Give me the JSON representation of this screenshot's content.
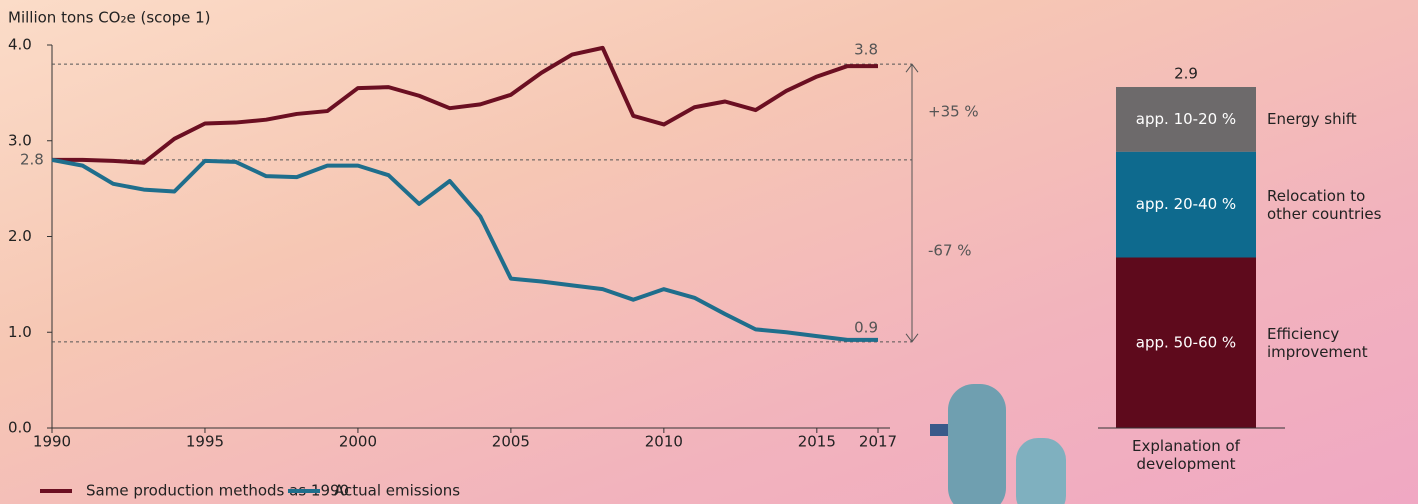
{
  "chart_data": [
    {
      "type": "line",
      "y_label": "Million tons CO₂e (scope 1)",
      "x": [
        1990,
        1991,
        1992,
        1993,
        1994,
        1995,
        1996,
        1997,
        1998,
        1999,
        2000,
        2001,
        2002,
        2003,
        2004,
        2005,
        2006,
        2007,
        2008,
        2009,
        2010,
        2011,
        2012,
        2013,
        2014,
        2015,
        2016,
        2017
      ],
      "xlim": [
        1990,
        2017
      ],
      "xticks": [
        1990,
        1995,
        2000,
        2005,
        2010,
        2015,
        2017
      ],
      "ylim": [
        0,
        4
      ],
      "yticks": [
        {
          "value": 0,
          "label": "0.0"
        },
        {
          "value": 1,
          "label": "1.0"
        },
        {
          "value": 2,
          "label": "2.0"
        },
        {
          "value": 3,
          "label": "3.0"
        },
        {
          "value": 4,
          "label": "4.0"
        }
      ],
      "series": [
        {
          "name": "Same production methods as 1990",
          "color": "#6b0f22",
          "values": [
            2.8,
            2.8,
            2.79,
            2.77,
            3.02,
            3.18,
            3.19,
            3.22,
            3.28,
            3.31,
            3.55,
            3.56,
            3.47,
            3.34,
            3.38,
            3.48,
            3.71,
            3.9,
            3.97,
            3.26,
            3.17,
            3.35,
            3.41,
            3.32,
            3.52,
            3.67,
            3.78,
            3.78
          ]
        },
        {
          "name": "Actual emissions",
          "color": "#1f6e8c",
          "values": [
            2.8,
            2.74,
            2.55,
            2.49,
            2.47,
            2.79,
            2.78,
            2.63,
            2.62,
            2.74,
            2.74,
            2.64,
            2.34,
            2.58,
            2.21,
            1.56,
            1.53,
            1.49,
            1.45,
            1.34,
            1.45,
            1.36,
            1.19,
            1.03,
            1.0,
            0.96,
            0.92,
            0.92
          ]
        }
      ],
      "reference_lines": [
        3.8,
        2.8,
        0.9
      ],
      "annotations": [
        "+35 %",
        "-67 %"
      ],
      "legend": "bottom-left"
    },
    {
      "type": "stacked_bar",
      "categories": [
        "Explanation of development"
      ],
      "total": 2.9,
      "ylim": [
        0,
        2.9
      ],
      "series": [
        {
          "name": "Efficiency improvement",
          "share": "app. 50-60 %",
          "color": "#5e0a1c",
          "values": [
            1.45
          ]
        },
        {
          "name": "Relocation to other countries",
          "share": "app. 20-40 %",
          "color": "#0e6a8e",
          "values": [
            0.9
          ]
        },
        {
          "name": "Energy shift",
          "share": "app. 10-20 %",
          "color": "#6d6a6b",
          "values": [
            0.55
          ]
        }
      ]
    }
  ]
}
